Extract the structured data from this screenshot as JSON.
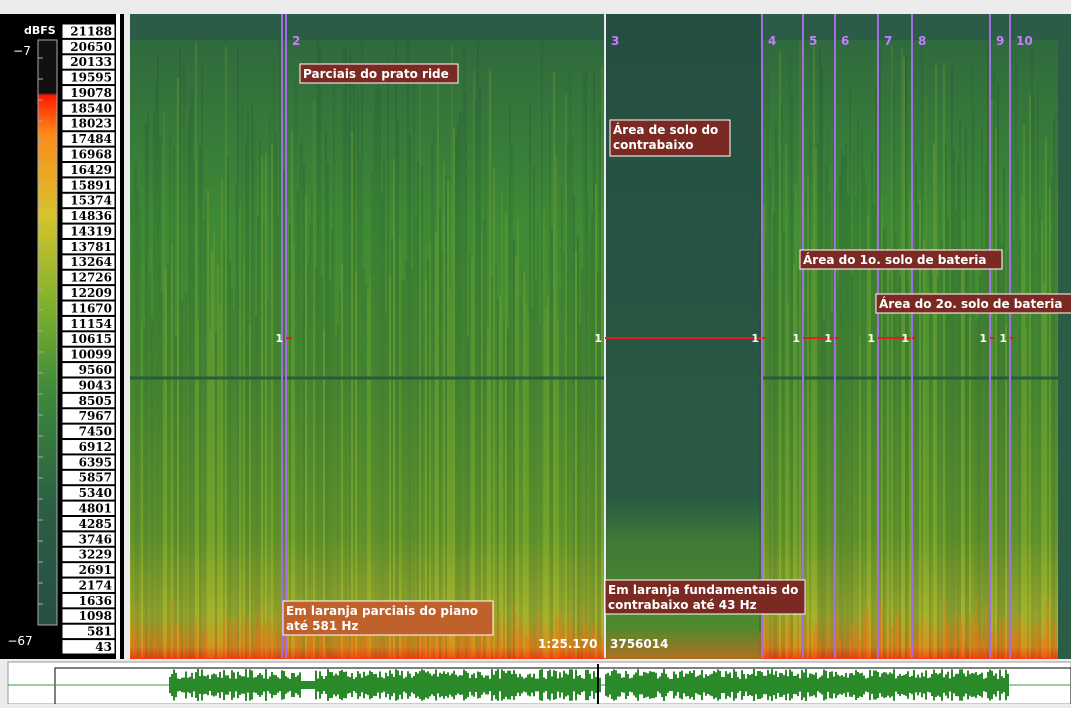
{
  "scale": {
    "unit": "dBFS",
    "max": "−7",
    "min": "−67"
  },
  "frequencies": [
    21188,
    20650,
    20133,
    19595,
    19078,
    18540,
    18023,
    17484,
    16968,
    16429,
    15891,
    15374,
    14836,
    14319,
    13781,
    13264,
    12726,
    12209,
    11670,
    11154,
    10615,
    10099,
    9560,
    9043,
    8505,
    7967,
    7450,
    6912,
    6395,
    5857,
    5340,
    4801,
    4285,
    3746,
    3229,
    2691,
    2174,
    1636,
    1098,
    581,
    43
  ],
  "markers": [
    {
      "label": "2",
      "layer": "1"
    },
    {
      "label": "3",
      "layer": "1"
    },
    {
      "label": "4",
      "layer": "1"
    },
    {
      "label": "5",
      "layer": "1"
    },
    {
      "label": "6",
      "layer": "1"
    },
    {
      "label": "7",
      "layer": "1"
    },
    {
      "label": "8",
      "layer": "1"
    },
    {
      "label": "9",
      "layer": "1"
    },
    {
      "label": "10",
      "layer": "1"
    }
  ],
  "annotations": [
    "Parciais do prato ride",
    "Área de solo do contrabaixo",
    "Área do 1o. solo de bateria",
    "Área do 2o. solo de bateria",
    "Em laranja parciais do piano até 581 Hz",
    "Em laranja fundamentais do contrabaixo até 43 Hz"
  ],
  "cursor": {
    "time": "1:25.170",
    "frame": "3756014"
  }
}
